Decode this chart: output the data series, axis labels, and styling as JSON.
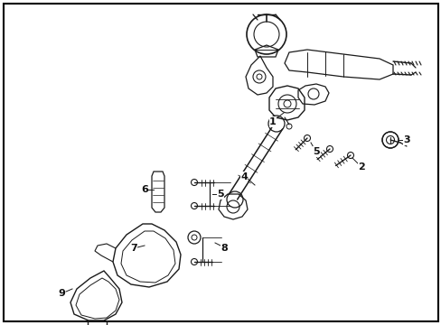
{
  "background_color": "#ffffff",
  "border_color": "#000000",
  "figsize": [
    4.89,
    3.6
  ],
  "dpi": 100
}
